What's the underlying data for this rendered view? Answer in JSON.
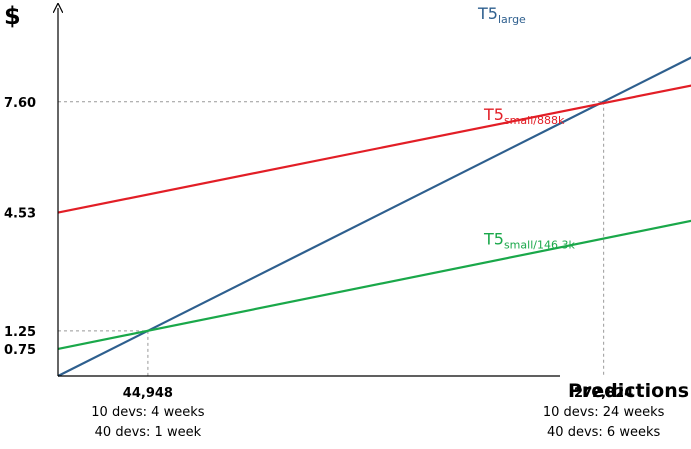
{
  "chart_data": {
    "type": "line",
    "ylabel": "$",
    "xlabel": "Predictions",
    "xlim": [
      0,
      300000
    ],
    "ylim": [
      0,
      10.2
    ],
    "y_ticks": [
      {
        "value": 0.75,
        "label": "0.75"
      },
      {
        "value": 1.25,
        "label": "1.25"
      },
      {
        "value": 4.53,
        "label": "4.53"
      },
      {
        "value": 7.6,
        "label": "7.60"
      }
    ],
    "x_ticks": [
      {
        "value": 44948,
        "label": "44,948",
        "notes": [
          "10 devs: 4 weeks",
          "40 devs: 1 week"
        ]
      },
      {
        "value": 272824,
        "label": "272,824",
        "notes": [
          "10 devs: 24 weeks",
          "40 devs: 6 weeks"
        ]
      }
    ],
    "reference_points": [
      {
        "x": 44948,
        "y": 1.25
      },
      {
        "x": 272824,
        "y": 7.6
      }
    ],
    "series": [
      {
        "name": "T5",
        "subscript": "large",
        "color": "#2e5f8e",
        "label_at": [
          0.7,
          9.9
        ],
        "points": [
          [
            0,
            0
          ],
          [
            330000,
            9.2
          ]
        ]
      },
      {
        "name": "T5",
        "subscript": "small/888k",
        "color": "#e21e26",
        "label_at": [
          0.71,
          7.1
        ],
        "points": [
          [
            0,
            4.53
          ],
          [
            330000,
            8.2
          ]
        ]
      },
      {
        "name": "T5",
        "subscript": "small/146.3k",
        "color": "#1aa84a",
        "label_at": [
          0.71,
          3.65
        ],
        "points": [
          [
            0,
            0.75
          ],
          [
            330000,
            4.45
          ]
        ]
      }
    ]
  }
}
